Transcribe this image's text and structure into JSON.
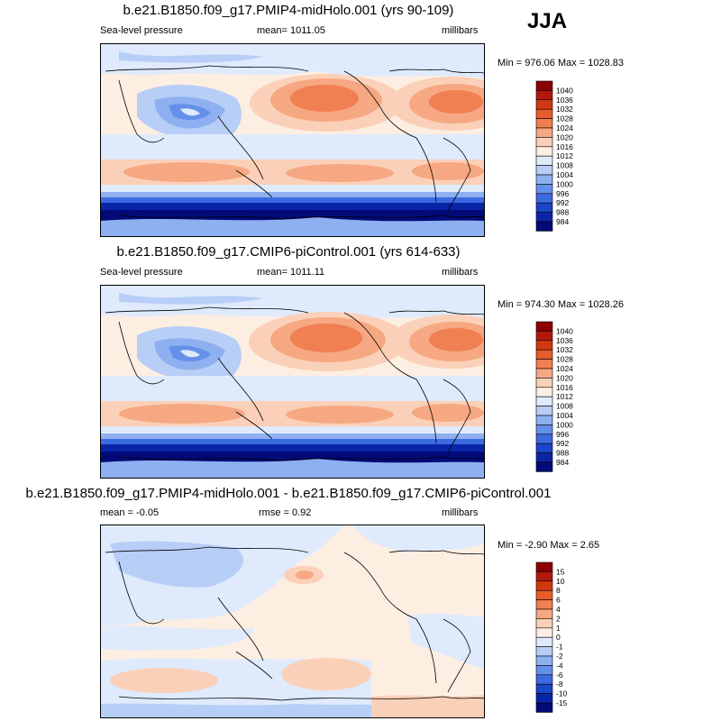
{
  "season": "JJA",
  "panels": [
    {
      "title": "b.e21.B1850.f09_g17.PMIP4-midHolo.001 (yrs 90-109)",
      "left_label": "Sea-level pressure",
      "center_label": "mean= 1011.05",
      "right_label": "millibars",
      "minmax": "Min = 976.06 Max = 1028.83",
      "colorbar": {
        "labels": [
          "1040",
          "1036",
          "1032",
          "1028",
          "1024",
          "1020",
          "1016",
          "1012",
          "1008",
          "1004",
          "1000",
          "996",
          "992",
          "988",
          "984"
        ],
        "colors": [
          "#8b0000",
          "#b3180f",
          "#d2380f",
          "#e85c2c",
          "#f07f52",
          "#f6a882",
          "#fbd0b8",
          "#fdeee2",
          "#dfeafc",
          "#b7cef7",
          "#8eb0f0",
          "#6590ea",
          "#3c6ae0",
          "#1a44c9",
          "#0a24a8",
          "#020a78"
        ]
      }
    },
    {
      "title": "b.e21.B1850.f09_g17.CMIP6-piControl.001 (yrs 614-633)",
      "left_label": "Sea-level pressure",
      "center_label": "mean= 1011.11",
      "right_label": "millibars",
      "minmax": "Min = 974.30 Max = 1028.26",
      "colorbar": {
        "labels": [
          "1040",
          "1036",
          "1032",
          "1028",
          "1024",
          "1020",
          "1016",
          "1012",
          "1008",
          "1004",
          "1000",
          "996",
          "992",
          "988",
          "984"
        ],
        "colors": [
          "#8b0000",
          "#b3180f",
          "#d2380f",
          "#e85c2c",
          "#f07f52",
          "#f6a882",
          "#fbd0b8",
          "#fdeee2",
          "#dfeafc",
          "#b7cef7",
          "#8eb0f0",
          "#6590ea",
          "#3c6ae0",
          "#1a44c9",
          "#0a24a8",
          "#020a78"
        ]
      }
    },
    {
      "title": "b.e21.B1850.f09_g17.PMIP4-midHolo.001 - b.e21.B1850.f09_g17.CMIP6-piControl.001",
      "left_label": "mean =  -0.05",
      "center_label": "rmse =   0.92",
      "right_label": "millibars",
      "minmax": "Min =  -2.90 Max =   2.65",
      "colorbar": {
        "labels": [
          "15",
          "10",
          "8",
          "6",
          "4",
          "2",
          "1",
          "0",
          "-1",
          "-2",
          "-4",
          "-6",
          "-8",
          "-10",
          "-15"
        ],
        "colors": [
          "#8b0000",
          "#b3180f",
          "#d2380f",
          "#e85c2c",
          "#f07f52",
          "#f6a882",
          "#fbd0b8",
          "#fdeee2",
          "#dfeafc",
          "#b7cef7",
          "#8eb0f0",
          "#6590ea",
          "#3c6ae0",
          "#1a44c9",
          "#0a24a8",
          "#020a78"
        ]
      }
    }
  ]
}
